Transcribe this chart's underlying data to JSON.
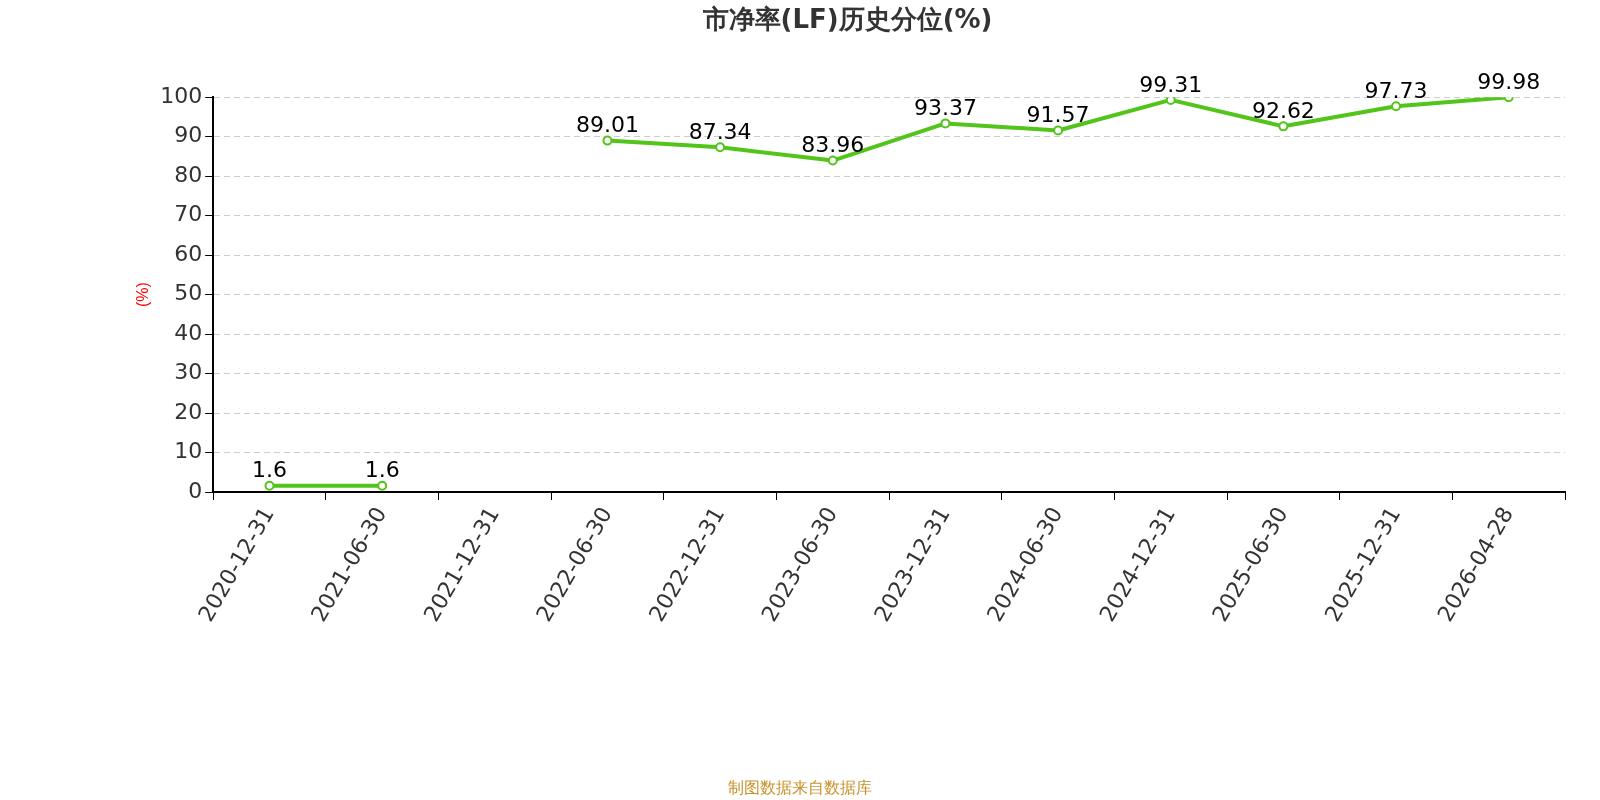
{
  "chart_data": {
    "type": "line",
    "title": "市净率(LF)历史分位(%)",
    "ylabel": "(%)",
    "categories": [
      "2020-12-31",
      "2021-06-30",
      "2021-12-31",
      "2022-06-30",
      "2022-12-31",
      "2023-06-30",
      "2023-12-31",
      "2024-06-30",
      "2024-12-31",
      "2025-06-30",
      "2025-12-31",
      "2026-04-28"
    ],
    "series": [
      {
        "color": "#52c41a",
        "values": [
          1.6,
          1.6,
          null,
          89.01,
          87.34,
          83.96,
          93.37,
          91.57,
          99.31,
          92.62,
          97.73,
          99.98
        ]
      }
    ],
    "ylim": [
      0,
      100
    ],
    "yticks": [
      0,
      10,
      20,
      30,
      40,
      50,
      60,
      70,
      80,
      90,
      100
    ],
    "grid": "y",
    "legend": false,
    "marker": "circle",
    "line_style": "solid",
    "data_labels": true,
    "annotations": [
      "制图数据来自数据库"
    ]
  }
}
